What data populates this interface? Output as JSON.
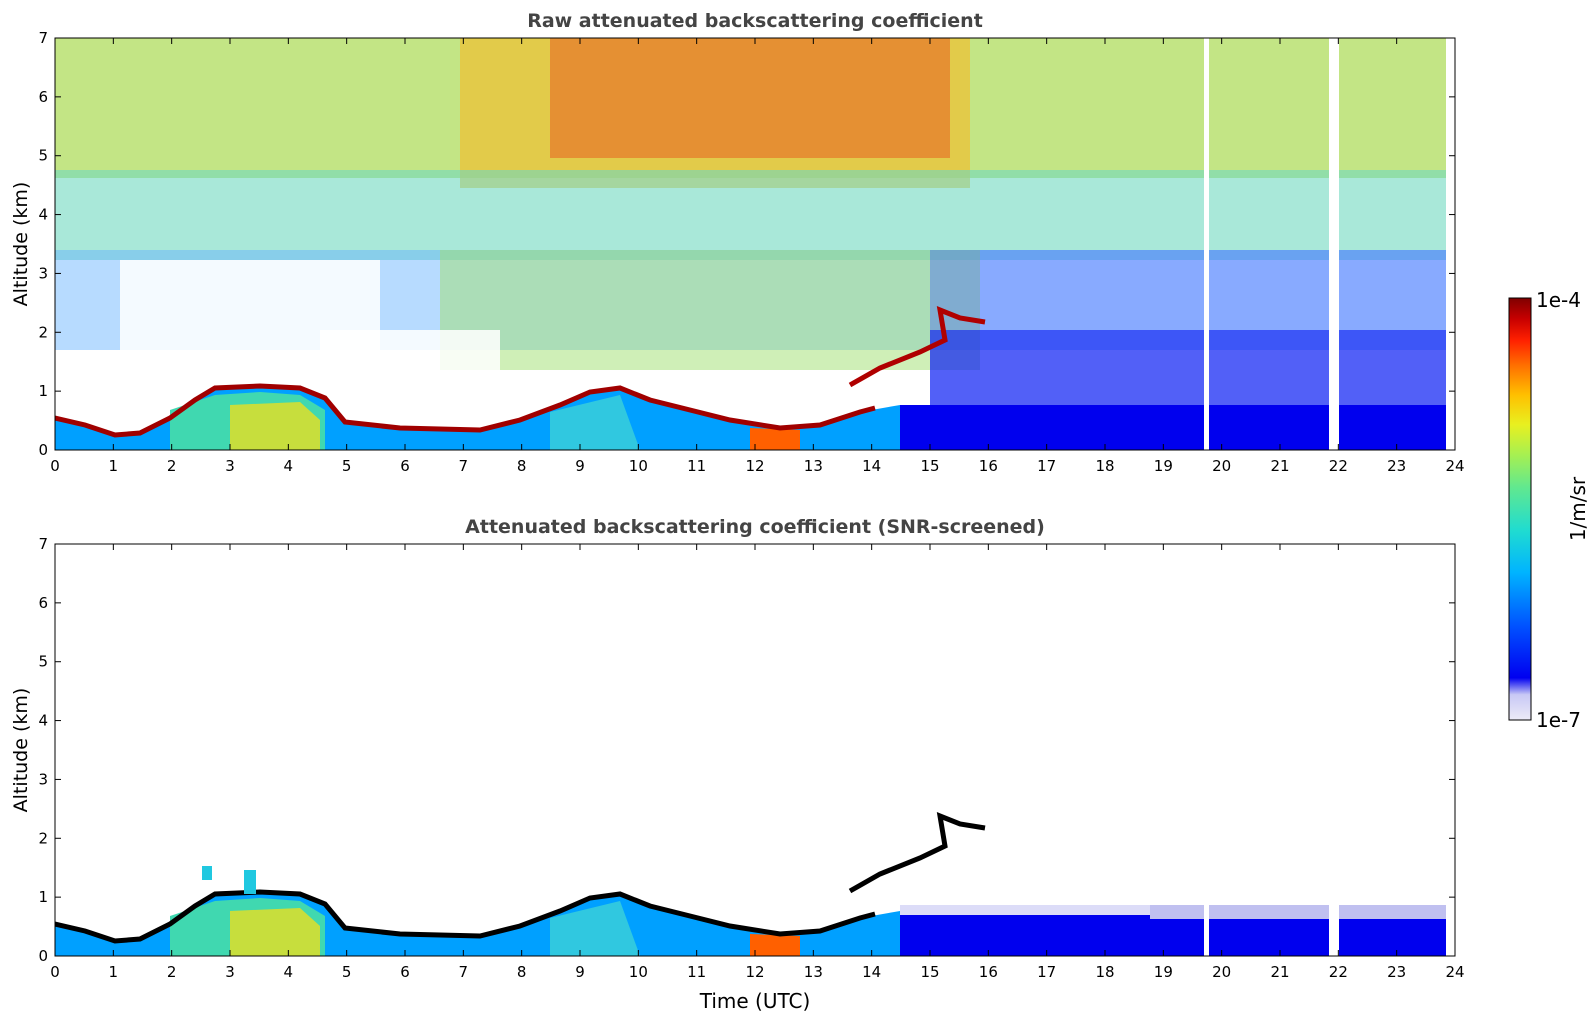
{
  "chart_data": [
    {
      "type": "heatmap",
      "title": "Raw attenuated backscattering coefficient",
      "xlabel": "",
      "ylabel": "Altitude (km)",
      "xlim": [
        0,
        24
      ],
      "ylim": [
        0,
        7
      ],
      "xticks": [
        "0",
        "1",
        "2",
        "3",
        "4",
        "5",
        "6",
        "7",
        "8",
        "9",
        "10",
        "11",
        "12",
        "13",
        "14",
        "15",
        "16",
        "17",
        "18",
        "19",
        "20",
        "21",
        "22",
        "23",
        "24"
      ],
      "yticks": [
        "0",
        "1",
        "2",
        "3",
        "4",
        "5",
        "6",
        "7"
      ],
      "boundary_layer_top_km": [
        [
          0.0,
          0.45
        ],
        [
          0.5,
          0.3
        ],
        [
          1.0,
          0.2
        ],
        [
          1.5,
          0.3
        ],
        [
          2.0,
          0.5
        ],
        [
          2.5,
          0.85
        ],
        [
          3.0,
          0.85
        ],
        [
          3.5,
          0.85
        ],
        [
          4.0,
          0.8
        ],
        [
          4.5,
          0.75
        ],
        [
          5.0,
          0.25
        ],
        [
          6.0,
          0.15
        ],
        [
          7.0,
          0.15
        ],
        [
          8.0,
          0.35
        ],
        [
          8.5,
          0.5
        ],
        [
          9.0,
          0.75
        ],
        [
          9.5,
          0.85
        ],
        [
          10.0,
          0.75
        ],
        [
          10.5,
          0.55
        ],
        [
          11.0,
          0.45
        ],
        [
          11.5,
          0.3
        ],
        [
          12.0,
          0.25
        ],
        [
          12.5,
          0.25
        ],
        [
          13.0,
          0.35
        ],
        [
          13.5,
          0.45
        ],
        [
          14.0,
          0.45
        ]
      ],
      "elevated_layer_km": [
        [
          13.6,
          1.0
        ],
        [
          14.0,
          1.35
        ],
        [
          14.5,
          1.5
        ],
        [
          15.0,
          1.7
        ],
        [
          15.3,
          2.4
        ],
        [
          15.7,
          2.3
        ],
        [
          16.0,
          2.1
        ]
      ],
      "data_gaps_utc": [
        19.7,
        21.9
      ]
    },
    {
      "type": "heatmap",
      "title": "Attenuated backscattering coefficient (SNR-screened)",
      "xlabel": "Time (UTC)",
      "ylabel": "Altitude (km)",
      "xlim": [
        0,
        24
      ],
      "ylim": [
        0,
        7
      ],
      "xticks": [
        "0",
        "1",
        "2",
        "3",
        "4",
        "5",
        "6",
        "7",
        "8",
        "9",
        "10",
        "11",
        "12",
        "13",
        "14",
        "15",
        "16",
        "17",
        "18",
        "19",
        "20",
        "21",
        "22",
        "23",
        "24"
      ],
      "yticks": [
        "0",
        "1",
        "2",
        "3",
        "4",
        "5",
        "6",
        "7"
      ],
      "data_gaps_utc": [
        19.7,
        21.9
      ]
    }
  ],
  "colorbar": {
    "label": "1/m/sr",
    "max_label": "1e-4",
    "min_label": "1e-7",
    "scale": "log",
    "colormap": "jet",
    "colors": [
      "#ecebf7",
      "#c8c8f5",
      "#0000f0",
      "#0050ff",
      "#00b4ff",
      "#20dcd0",
      "#60e890",
      "#a8f050",
      "#e8f020",
      "#ffc000",
      "#ff7000",
      "#ff2000",
      "#c80000",
      "#800000"
    ]
  }
}
